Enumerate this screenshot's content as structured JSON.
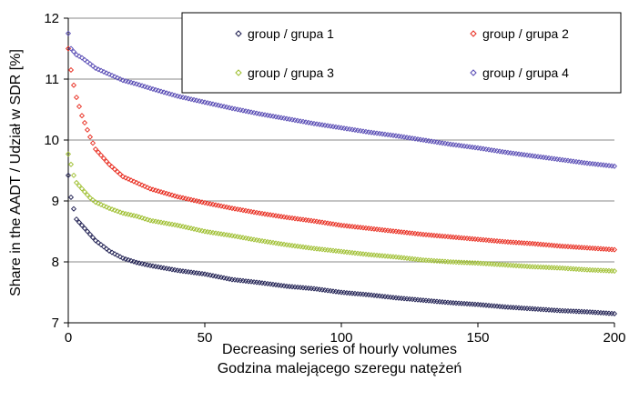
{
  "chart_data": {
    "type": "scatter",
    "xlabel": "Decreasing series of hourly volumes",
    "xlabel_2": "Godzina malejącego szeregu natężeń",
    "ylabel": "Share in the AADT / Udział w SDR [%]",
    "xlim": [
      0,
      200
    ],
    "ylim": [
      7,
      12
    ],
    "x_ticks": [
      0,
      50,
      100,
      150,
      200
    ],
    "y_ticks": [
      7,
      8,
      9,
      10,
      11,
      12
    ],
    "grid": "horizontal",
    "legend_placement": "top-right",
    "marker": "diamond",
    "series": [
      {
        "name": "group / grupa 1",
        "color": "#1a1a4e",
        "x": [
          0,
          1,
          2,
          3,
          5,
          8,
          10,
          15,
          20,
          25,
          30,
          40,
          50,
          60,
          70,
          80,
          90,
          100,
          110,
          120,
          130,
          140,
          150,
          160,
          170,
          180,
          190,
          200
        ],
        "y": [
          9.42,
          9.06,
          8.87,
          8.7,
          8.6,
          8.45,
          8.35,
          8.18,
          8.06,
          7.99,
          7.94,
          7.86,
          7.8,
          7.71,
          7.66,
          7.6,
          7.56,
          7.5,
          7.46,
          7.41,
          7.37,
          7.33,
          7.3,
          7.26,
          7.23,
          7.2,
          7.18,
          7.15
        ]
      },
      {
        "name": "group / grupa 2",
        "color": "#e8291c",
        "x": [
          0,
          1,
          2,
          3,
          5,
          8,
          10,
          15,
          20,
          25,
          30,
          40,
          50,
          60,
          70,
          80,
          90,
          100,
          110,
          120,
          130,
          140,
          150,
          160,
          170,
          180,
          190,
          200
        ],
        "y": [
          11.5,
          11.15,
          10.9,
          10.7,
          10.4,
          10.05,
          9.85,
          9.6,
          9.4,
          9.3,
          9.2,
          9.07,
          8.97,
          8.88,
          8.8,
          8.73,
          8.67,
          8.6,
          8.55,
          8.5,
          8.45,
          8.41,
          8.37,
          8.33,
          8.3,
          8.26,
          8.23,
          8.2
        ]
      },
      {
        "name": "group / grupa 3",
        "color": "#9dbe2d",
        "x": [
          0,
          1,
          2,
          3,
          5,
          8,
          10,
          15,
          20,
          25,
          30,
          40,
          50,
          60,
          70,
          80,
          90,
          100,
          110,
          120,
          130,
          140,
          150,
          160,
          170,
          180,
          190,
          200
        ],
        "y": [
          9.77,
          9.6,
          9.42,
          9.3,
          9.2,
          9.05,
          8.98,
          8.88,
          8.8,
          8.75,
          8.68,
          8.6,
          8.5,
          8.43,
          8.35,
          8.28,
          8.22,
          8.17,
          8.12,
          8.08,
          8.03,
          8.0,
          7.98,
          7.95,
          7.92,
          7.9,
          7.87,
          7.85
        ]
      },
      {
        "name": "group / grupa 4",
        "color": "#5548b3",
        "x": [
          0,
          1,
          2,
          3,
          5,
          8,
          10,
          15,
          20,
          25,
          30,
          40,
          50,
          60,
          70,
          80,
          90,
          100,
          110,
          120,
          130,
          140,
          150,
          160,
          170,
          180,
          190,
          200
        ],
        "y": [
          11.75,
          11.5,
          11.45,
          11.4,
          11.35,
          11.25,
          11.18,
          11.08,
          10.98,
          10.92,
          10.85,
          10.72,
          10.62,
          10.52,
          10.43,
          10.35,
          10.27,
          10.2,
          10.13,
          10.07,
          10.0,
          9.93,
          9.87,
          9.8,
          9.74,
          9.68,
          9.62,
          9.57
        ]
      }
    ]
  }
}
